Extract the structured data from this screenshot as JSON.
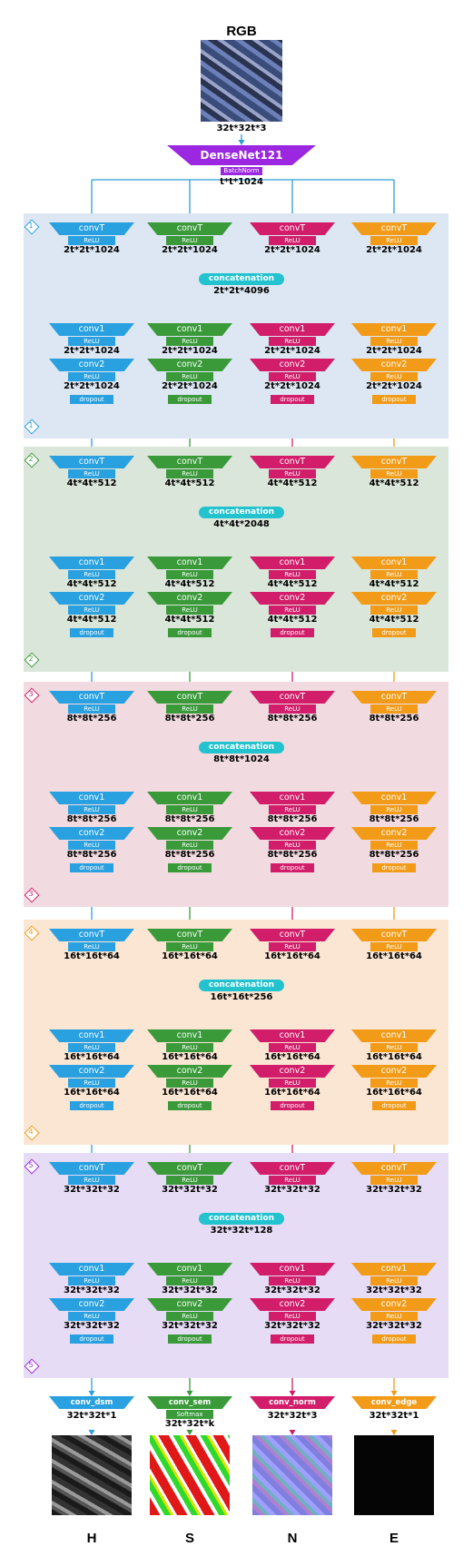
{
  "title": "RGB",
  "input_shape": "32t*32t*3",
  "backbone": {
    "label": "DenseNet121",
    "norm": "BatchNorm",
    "out_shape": "t*t*1024"
  },
  "colors": {
    "blue": "#29a0e0",
    "green": "#3a9a3a",
    "magenta": "#d11d6a",
    "orange": "#f29b18",
    "purple": "#9b27e0",
    "concat": "#22c3cf",
    "line": "#2a9fd8"
  },
  "icons": {
    "stage_marker": "diamond-icon",
    "arrow": "arrow-down-icon"
  },
  "layers": {
    "convT": "convT",
    "conv1": "conv1",
    "conv2": "conv2",
    "relu": "ReLU",
    "dropout": "dropout",
    "concat": "concatenation"
  },
  "stages": [
    {
      "id": "1",
      "branch_shape": "2t*2t*1024",
      "concat_shape": "2t*2t*4096",
      "conv_shape": "2t*2t*1024",
      "bg": "#dde7f3",
      "marker_color": "#29a0e0"
    },
    {
      "id": "2",
      "branch_shape": "4t*4t*512",
      "concat_shape": "4t*4t*2048",
      "conv_shape": "4t*4t*512",
      "bg": "#dbe6da",
      "marker_color": "#3a9a3a"
    },
    {
      "id": "3",
      "branch_shape": "8t*8t*256",
      "concat_shape": "8t*8t*1024",
      "conv_shape": "8t*8t*256",
      "bg": "#f2dbe0",
      "marker_color": "#d11d6a"
    },
    {
      "id": "4",
      "branch_shape": "16t*16t*64",
      "concat_shape": "16t*16t*256",
      "conv_shape": "16t*16t*64",
      "bg": "#fbe6d4",
      "marker_color": "#f29b18"
    },
    {
      "id": "5",
      "branch_shape": "32t*32t*32",
      "concat_shape": "32t*32t*128",
      "conv_shape": "32t*32t*32",
      "bg": "#e6dcf5",
      "marker_color": "#9b27e0"
    }
  ],
  "heads": [
    {
      "label": "conv_dsm",
      "activation": "",
      "shape": "32t*32t*1",
      "output": "H"
    },
    {
      "label": "conv_sem",
      "activation": "Softmax",
      "shape": "32t*32t*k",
      "output": "S"
    },
    {
      "label": "conv_norm",
      "activation": "",
      "shape": "32t*32t*3",
      "output": "N"
    },
    {
      "label": "conv_edge",
      "activation": "",
      "shape": "32t*32t*1",
      "output": "E"
    }
  ]
}
